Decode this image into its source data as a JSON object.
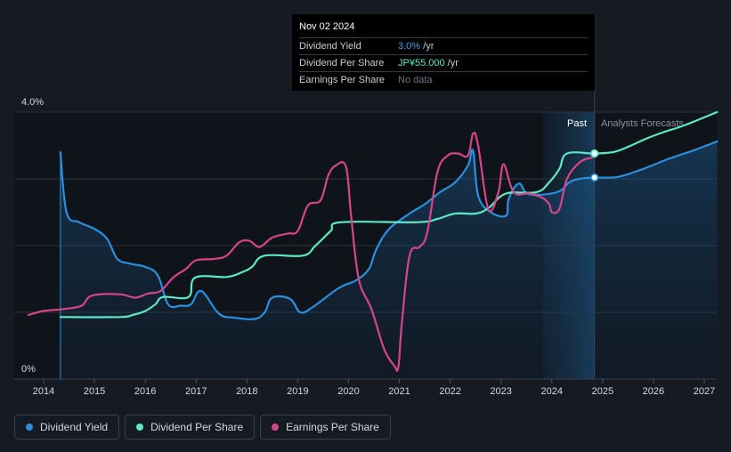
{
  "tooltip": {
    "date": "Nov 02 2024",
    "rows": [
      {
        "label": "Dividend Yield",
        "value": "3.0%",
        "unit": " /yr",
        "color": "#3b9fe6"
      },
      {
        "label": "Dividend Per Share",
        "value": "JP¥55.000",
        "unit": " /yr",
        "color": "#5ee8c5"
      },
      {
        "label": "Earnings Per Share",
        "value": "No data",
        "unit": "",
        "color": "#6b7280"
      }
    ]
  },
  "labels": {
    "past": "Past",
    "forecast": "Analysts Forecasts"
  },
  "legend": [
    {
      "label": "Dividend Yield",
      "color": "#2b8fe0"
    },
    {
      "label": "Dividend Per Share",
      "color": "#5ee8c5"
    },
    {
      "label": "Earnings Per Share",
      "color": "#d6458c"
    }
  ],
  "chart_data": {
    "type": "line",
    "xlim": [
      2013.7,
      2027.25
    ],
    "ylim": [
      0,
      4.0
    ],
    "y_ticks": [
      {
        "value": 4.0,
        "label": "4.0%"
      },
      {
        "value": 0,
        "label": "0%"
      }
    ],
    "x_ticks": [
      2014,
      2015,
      2016,
      2017,
      2018,
      2019,
      2020,
      2021,
      2022,
      2023,
      2024,
      2025,
      2026,
      2027
    ],
    "forecast_start": 2024.84,
    "past_band_start": 2023.83,
    "series": [
      {
        "name": "Dividend Yield",
        "color": "#2b8fe0",
        "filled": true,
        "points": [
          [
            2014.33,
            3.4
          ],
          [
            2014.45,
            2.5
          ],
          [
            2014.7,
            2.35
          ],
          [
            2015.0,
            2.25
          ],
          [
            2015.25,
            2.1
          ],
          [
            2015.45,
            1.8
          ],
          [
            2015.7,
            1.73
          ],
          [
            2016.0,
            1.68
          ],
          [
            2016.25,
            1.55
          ],
          [
            2016.45,
            1.12
          ],
          [
            2016.7,
            1.1
          ],
          [
            2016.9,
            1.12
          ],
          [
            2017.1,
            1.32
          ],
          [
            2017.45,
            0.98
          ],
          [
            2017.75,
            0.92
          ],
          [
            2018.15,
            0.9
          ],
          [
            2018.35,
            1.0
          ],
          [
            2018.5,
            1.22
          ],
          [
            2018.85,
            1.2
          ],
          [
            2019.05,
            1.0
          ],
          [
            2019.3,
            1.08
          ],
          [
            2019.8,
            1.36
          ],
          [
            2020.15,
            1.48
          ],
          [
            2020.4,
            1.65
          ],
          [
            2020.55,
            1.95
          ],
          [
            2020.8,
            2.25
          ],
          [
            2021.2,
            2.48
          ],
          [
            2021.5,
            2.62
          ],
          [
            2021.8,
            2.8
          ],
          [
            2022.1,
            2.95
          ],
          [
            2022.35,
            3.2
          ],
          [
            2022.45,
            3.42
          ],
          [
            2022.55,
            2.75
          ],
          [
            2022.8,
            2.5
          ],
          [
            2023.1,
            2.45
          ],
          [
            2023.15,
            2.7
          ],
          [
            2023.35,
            2.93
          ],
          [
            2023.55,
            2.77
          ],
          [
            2024.1,
            2.8
          ],
          [
            2024.35,
            2.95
          ],
          [
            2024.55,
            3.0
          ],
          [
            2024.84,
            3.02
          ],
          [
            2025.3,
            3.03
          ],
          [
            2025.8,
            3.15
          ],
          [
            2026.3,
            3.3
          ],
          [
            2026.8,
            3.43
          ],
          [
            2027.25,
            3.56
          ]
        ]
      },
      {
        "name": "Dividend Per Share",
        "color": "#5ee8c5",
        "filled": false,
        "points": [
          [
            2014.33,
            0.93
          ],
          [
            2015.5,
            0.93
          ],
          [
            2015.75,
            0.96
          ],
          [
            2016.0,
            1.02
          ],
          [
            2016.2,
            1.12
          ],
          [
            2016.35,
            1.23
          ],
          [
            2016.85,
            1.23
          ],
          [
            2016.98,
            1.52
          ],
          [
            2017.6,
            1.53
          ],
          [
            2017.9,
            1.6
          ],
          [
            2018.1,
            1.68
          ],
          [
            2018.35,
            1.85
          ],
          [
            2019.1,
            1.85
          ],
          [
            2019.35,
            2.0
          ],
          [
            2019.65,
            2.22
          ],
          [
            2019.85,
            2.35
          ],
          [
            2021.35,
            2.35
          ],
          [
            2021.75,
            2.4
          ],
          [
            2022.1,
            2.48
          ],
          [
            2022.5,
            2.48
          ],
          [
            2022.75,
            2.56
          ],
          [
            2023.1,
            2.78
          ],
          [
            2023.7,
            2.8
          ],
          [
            2023.95,
            2.95
          ],
          [
            2024.15,
            3.15
          ],
          [
            2024.3,
            3.38
          ],
          [
            2024.84,
            3.38
          ],
          [
            2025.2,
            3.4
          ],
          [
            2025.5,
            3.48
          ],
          [
            2025.85,
            3.6
          ],
          [
            2026.2,
            3.7
          ],
          [
            2026.6,
            3.8
          ],
          [
            2027.25,
            4.0
          ]
        ]
      },
      {
        "name": "Earnings Per Share",
        "color": "#d6458c",
        "filled": false,
        "points": [
          [
            2013.7,
            0.96
          ],
          [
            2014.0,
            1.02
          ],
          [
            2014.4,
            1.05
          ],
          [
            2014.75,
            1.1
          ],
          [
            2014.95,
            1.25
          ],
          [
            2015.5,
            1.27
          ],
          [
            2015.8,
            1.22
          ],
          [
            2016.05,
            1.28
          ],
          [
            2016.3,
            1.32
          ],
          [
            2016.55,
            1.52
          ],
          [
            2016.8,
            1.65
          ],
          [
            2017.0,
            1.78
          ],
          [
            2017.35,
            1.8
          ],
          [
            2017.6,
            1.85
          ],
          [
            2017.85,
            2.05
          ],
          [
            2018.05,
            2.07
          ],
          [
            2018.25,
            1.98
          ],
          [
            2018.5,
            2.12
          ],
          [
            2018.8,
            2.18
          ],
          [
            2019.0,
            2.22
          ],
          [
            2019.2,
            2.6
          ],
          [
            2019.45,
            2.68
          ],
          [
            2019.6,
            3.05
          ],
          [
            2019.75,
            3.2
          ],
          [
            2019.95,
            3.18
          ],
          [
            2020.05,
            2.45
          ],
          [
            2020.2,
            1.5
          ],
          [
            2020.45,
            1.05
          ],
          [
            2020.7,
            0.45
          ],
          [
            2020.9,
            0.2
          ],
          [
            2020.98,
            0.18
          ],
          [
            2021.05,
            0.85
          ],
          [
            2021.2,
            1.85
          ],
          [
            2021.4,
            1.98
          ],
          [
            2021.55,
            2.2
          ],
          [
            2021.75,
            3.1
          ],
          [
            2021.95,
            3.35
          ],
          [
            2022.15,
            3.38
          ],
          [
            2022.35,
            3.35
          ],
          [
            2022.45,
            3.68
          ],
          [
            2022.55,
            3.5
          ],
          [
            2022.75,
            2.55
          ],
          [
            2022.95,
            2.8
          ],
          [
            2023.05,
            3.22
          ],
          [
            2023.25,
            2.8
          ],
          [
            2023.55,
            2.78
          ],
          [
            2023.8,
            2.72
          ],
          [
            2023.95,
            2.62
          ],
          [
            2024.0,
            2.5
          ],
          [
            2024.15,
            2.55
          ],
          [
            2024.3,
            3.0
          ],
          [
            2024.55,
            3.25
          ],
          [
            2024.8,
            3.32
          ]
        ]
      }
    ],
    "markers": [
      {
        "series": "Dividend Yield",
        "x": 2024.84,
        "y": 3.02
      },
      {
        "series": "Dividend Per Share",
        "x": 2024.84,
        "y": 3.38
      }
    ]
  }
}
